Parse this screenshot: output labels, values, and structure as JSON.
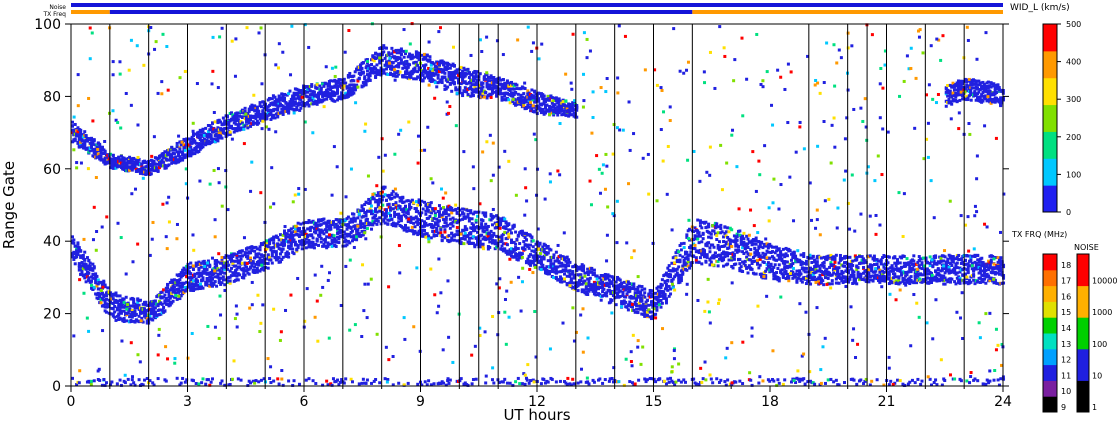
{
  "chart_data": {
    "type": "heatmap",
    "title": "",
    "xlabel": "UT hours",
    "ylabel": "Range Gate",
    "xlim": [
      0,
      24
    ],
    "ylim": [
      0,
      100
    ],
    "xticks": [
      0,
      3,
      6,
      9,
      12,
      15,
      18,
      21,
      24
    ],
    "yticks": [
      0,
      20,
      40,
      60,
      80,
      100
    ],
    "top_bars": {
      "noise_label": "Noise",
      "txfreq_label": "TX Freq",
      "noise_color": "#1414d8",
      "txfreq_segments": [
        {
          "from": 0,
          "to": 1,
          "color": "#ff9900"
        },
        {
          "from": 1,
          "to": 16,
          "color": "#1414d8"
        },
        {
          "from": 16,
          "to": 24,
          "color": "#ff9900"
        }
      ]
    },
    "scan_boundaries": [
      1.0,
      2.0,
      3.0,
      4.0,
      5.0,
      6.0,
      7.0,
      8.0,
      9.0,
      10.0,
      10.5,
      11.0,
      12.0,
      13.0,
      14.0,
      15.0,
      16.0,
      19.0,
      20.0,
      20.5,
      21.0,
      22.0,
      23.0,
      24.0
    ],
    "echo_bands": [
      {
        "name": "main",
        "color": "#2020e0",
        "points": [
          [
            0,
            38,
            8
          ],
          [
            1,
            22,
            8
          ],
          [
            2,
            20,
            6
          ],
          [
            3,
            30,
            8
          ],
          [
            4,
            32,
            8
          ],
          [
            5,
            36,
            8
          ],
          [
            6,
            42,
            8
          ],
          [
            7,
            42,
            8
          ],
          [
            8,
            50,
            10
          ],
          [
            9,
            46,
            10
          ],
          [
            10,
            44,
            10
          ],
          [
            11,
            42,
            10
          ],
          [
            12,
            36,
            8
          ],
          [
            13,
            30,
            8
          ],
          [
            14,
            26,
            8
          ],
          [
            15,
            22,
            8
          ],
          [
            16,
            40,
            12
          ],
          [
            17,
            38,
            12
          ],
          [
            18,
            34,
            10
          ],
          [
            19,
            32,
            8
          ],
          [
            20,
            32,
            8
          ],
          [
            21,
            32,
            8
          ],
          [
            22,
            32,
            8
          ],
          [
            23,
            32,
            8
          ],
          [
            24,
            32,
            8
          ]
        ]
      },
      {
        "name": "upper",
        "color": "#2020e0",
        "points": [
          [
            0,
            70,
            6
          ],
          [
            1,
            62,
            4
          ],
          [
            2,
            60,
            4
          ],
          [
            3,
            66,
            6
          ],
          [
            4,
            72,
            6
          ],
          [
            5,
            76,
            6
          ],
          [
            6,
            80,
            6
          ],
          [
            7,
            82,
            6
          ],
          [
            8,
            90,
            8
          ],
          [
            9,
            88,
            8
          ],
          [
            10,
            84,
            8
          ],
          [
            11,
            82,
            6
          ],
          [
            12,
            78,
            6
          ],
          [
            13,
            76,
            4
          ]
        ]
      },
      {
        "name": "late",
        "color": "#2020e0",
        "points": [
          [
            22.5,
            80,
            6
          ],
          [
            23,
            82,
            6
          ],
          [
            24,
            80,
            6
          ]
        ]
      },
      {
        "name": "ground",
        "color": "#2020e0",
        "points": [
          [
            0,
            1,
            2
          ],
          [
            8,
            1,
            2
          ],
          [
            16,
            1,
            2
          ],
          [
            24,
            1,
            2
          ]
        ]
      }
    ],
    "wid_colorbar": {
      "label": "WID_L (km/s)",
      "min": 0,
      "max": 500,
      "ticks": [
        0,
        100,
        200,
        300,
        400,
        500
      ],
      "colors": [
        "#2020f0",
        "#00c8ff",
        "#00e080",
        "#80e000",
        "#ffe000",
        "#ff9900",
        "#ff0000"
      ]
    },
    "txfreq_colorbar": {
      "label": "TX FRQ (MHz)",
      "ticks": [
        9,
        10,
        11,
        12,
        13,
        14,
        15,
        16,
        17,
        18
      ],
      "colors": [
        "#000000",
        "#7a1fa0",
        "#1f1fe0",
        "#00a0ff",
        "#00e0c0",
        "#00d000",
        "#e0e000",
        "#ffb000",
        "#ff7000",
        "#ff0000"
      ]
    },
    "noise_colorbar": {
      "label": "NOISE",
      "ticks": [
        "1",
        "10",
        "100",
        "1000",
        "10000"
      ],
      "colors": [
        "#000000",
        "#1f1fe0",
        "#00d000",
        "#ffb000",
        "#ff0000"
      ]
    }
  }
}
